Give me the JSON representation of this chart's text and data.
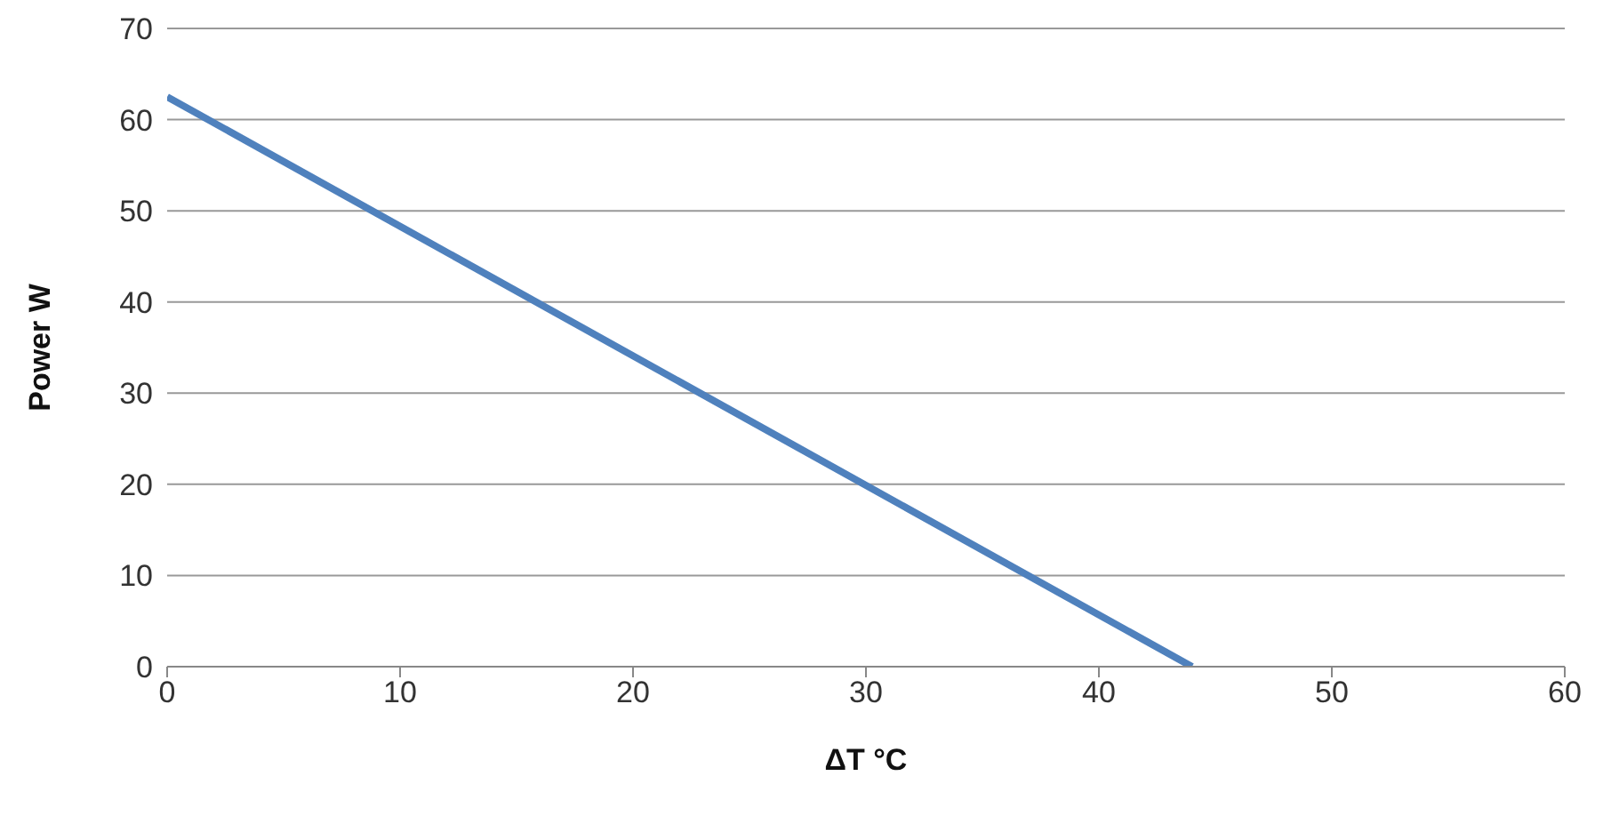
{
  "chart_data": {
    "type": "line",
    "xlabel": "ΔT °C",
    "ylabel": "Power W",
    "x": [
      0,
      44
    ],
    "series": [
      {
        "color": "#4f81bd",
        "values": [
          62.5,
          0
        ]
      }
    ],
    "xlim": [
      0,
      60
    ],
    "xticks": [
      0,
      10,
      20,
      30,
      40,
      50,
      60
    ],
    "ylim": [
      0,
      70
    ],
    "yticks": [
      0,
      10,
      20,
      30,
      40,
      50,
      60,
      70
    ],
    "grid": "y",
    "marker": "none",
    "line_style": "solid",
    "legend": false
  }
}
